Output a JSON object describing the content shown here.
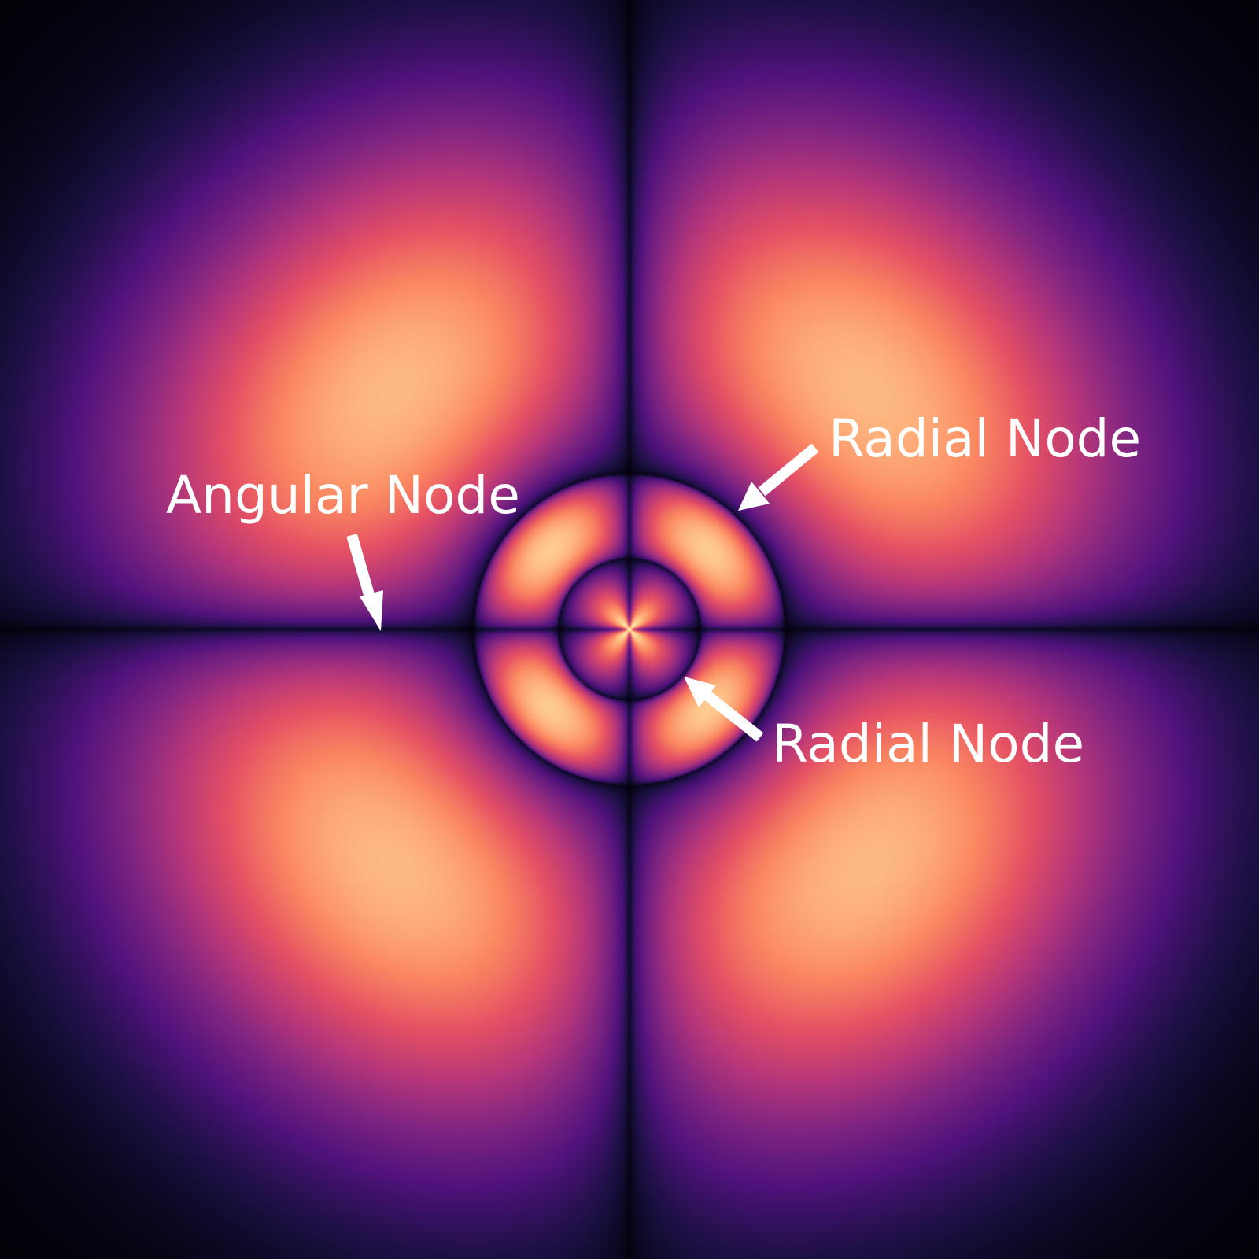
{
  "labels": {
    "angular_node": "Angular Node",
    "radial_node_outer": "Radial Node",
    "radial_node_inner": "Radial Node"
  },
  "colors": {
    "background": "#000000",
    "arrow": "#ffffff",
    "text": "#ffffff",
    "colormap": "magma"
  }
}
